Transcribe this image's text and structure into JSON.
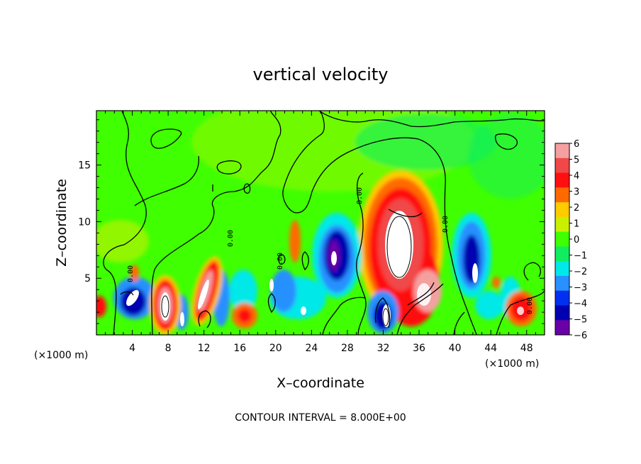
{
  "chart_data": {
    "type": "heatmap",
    "title": "vertical velocity",
    "xlabel": "X–coordinate",
    "ylabel": "Z–coordinate",
    "x_unit": "(×1000 m)",
    "y_unit": "(×1000 m)",
    "xlim": [
      0,
      50
    ],
    "ylim": [
      0,
      19.8
    ],
    "xticks": [
      "4",
      "8",
      "12",
      "16",
      "20",
      "24",
      "28",
      "32",
      "36",
      "40",
      "44",
      "48"
    ],
    "yticks": [
      "5",
      "10",
      "15"
    ],
    "colorbar": {
      "range": [
        -6,
        6
      ],
      "labels": [
        "6",
        "5",
        "4",
        "3",
        "2",
        "1",
        "0",
        "−1",
        "−2",
        "−3",
        "−4",
        "−5",
        "−6"
      ],
      "colors": [
        "#f4a0a0",
        "#f04848",
        "#ff1010",
        "#ff6a00",
        "#ffcc00",
        "#c8f000",
        "#40ff00",
        "#10ee60",
        "#00e8e8",
        "#2890ff",
        "#0030f0",
        "#0000b0",
        "#6a00a8"
      ]
    },
    "contour_label": "0.00",
    "contour_interval_text": "CONTOUR INTERVAL = 8.000E+00",
    "features": [
      {
        "kind": "updraft",
        "x": 33.5,
        "z": 8,
        "peak": 6
      },
      {
        "kind": "downdraft",
        "x": 26.5,
        "z": 7,
        "peak": -6
      },
      {
        "kind": "downdraft",
        "x": 41.5,
        "z": 6.5,
        "peak": -6
      },
      {
        "kind": "updraft",
        "x": 8,
        "z": 3,
        "peak": 6
      },
      {
        "kind": "updraft",
        "x": 12.5,
        "z": 4,
        "peak": 6
      },
      {
        "kind": "updraft",
        "x": 47,
        "z": 2.5,
        "peak": 6
      },
      {
        "kind": "downdraft",
        "x": 4.5,
        "z": 3.5,
        "peak": -6
      },
      {
        "kind": "downdraft",
        "x": 31.5,
        "z": 2,
        "peak": -6
      }
    ]
  }
}
